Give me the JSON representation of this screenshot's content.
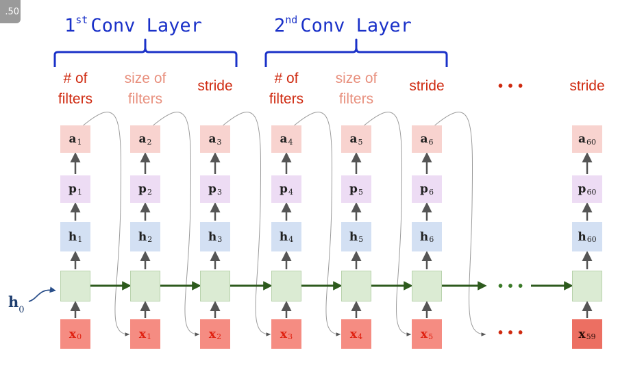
{
  "corner_badge": ".50",
  "conv_layers": [
    {
      "ordinal": "1",
      "sup": "st",
      "text": "Conv Layer"
    },
    {
      "ordinal": "2",
      "sup": "nd",
      "text": "Conv Layer"
    }
  ],
  "param_labels": [
    {
      "lines": [
        "# of",
        "filters"
      ],
      "style": "red"
    },
    {
      "lines": [
        "size of",
        "filters"
      ],
      "style": "pink"
    },
    {
      "lines": [
        "stride"
      ],
      "style": "red"
    },
    {
      "lines": [
        "# of",
        "filters"
      ],
      "style": "red"
    },
    {
      "lines": [
        "size of",
        "filters"
      ],
      "style": "pink"
    },
    {
      "lines": [
        "stride"
      ],
      "style": "red"
    },
    {
      "lines": [
        "stride"
      ],
      "style": "red"
    }
  ],
  "ellipsis": "• • •",
  "steps": [
    {
      "a": "1",
      "p": "1",
      "h": "1",
      "x": "0"
    },
    {
      "a": "2",
      "p": "2",
      "h": "2",
      "x": "1"
    },
    {
      "a": "3",
      "p": "3",
      "h": "3",
      "x": "2"
    },
    {
      "a": "4",
      "p": "4",
      "h": "4",
      "x": "3"
    },
    {
      "a": "5",
      "p": "5",
      "h": "5",
      "x": "4"
    },
    {
      "a": "6",
      "p": "6",
      "h": "6",
      "x": "5"
    },
    {
      "a": "60",
      "p": "60",
      "h": "60",
      "x": "59"
    }
  ],
  "symbols": {
    "a": "a",
    "p": "p",
    "h": "h",
    "x": "x"
  },
  "initial_state": {
    "symbol": "h",
    "sub": "0"
  },
  "colors": {
    "title_blue": "#1a31c8",
    "param_red": "#cf2a10",
    "param_pink": "#e8907e",
    "a_box": "#f8d3cf",
    "p_box": "#eddcf4",
    "h_box": "#d3e0f3",
    "cell_box": "#dbebd3",
    "x_box": "#f58c82",
    "x_box_last": "#ec6f62",
    "recurrent_arrow": "#2d5a1d",
    "h0_blue": "#1d3d6e"
  }
}
